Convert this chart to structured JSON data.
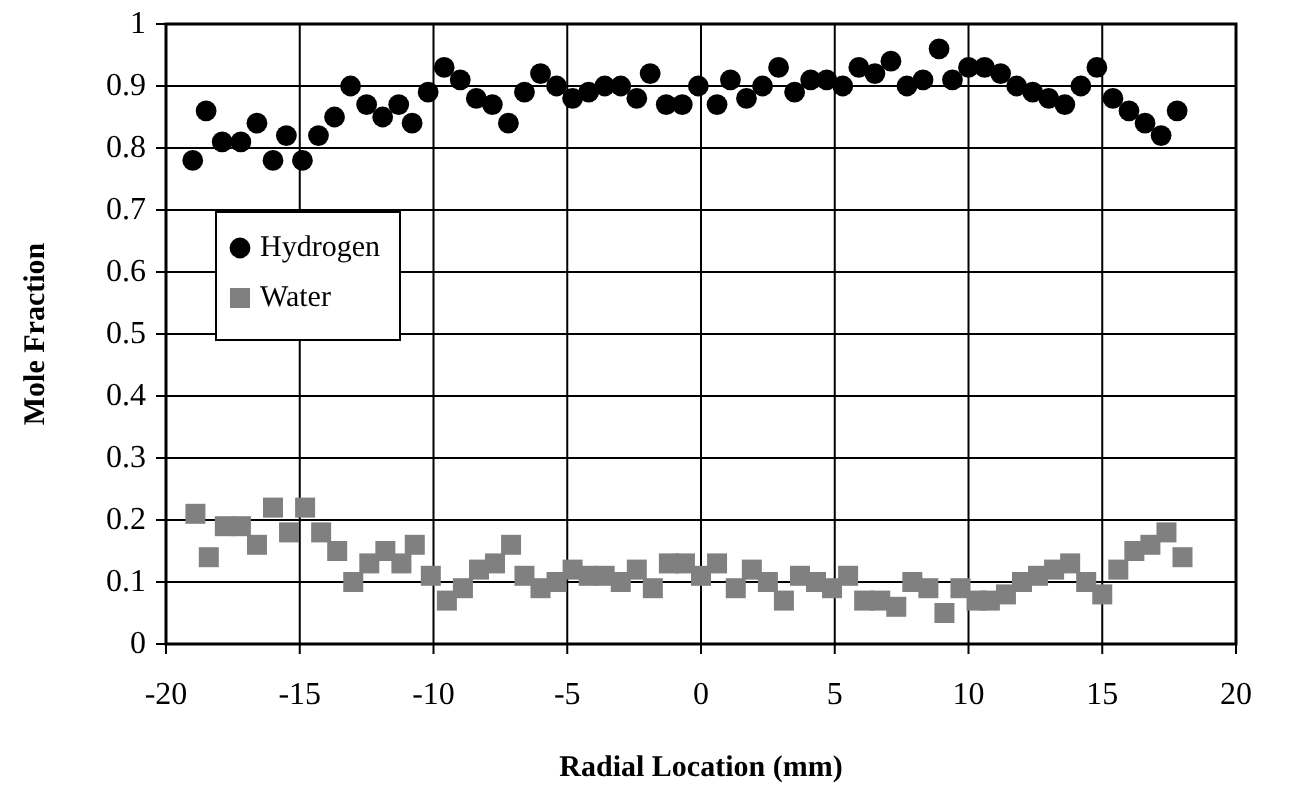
{
  "chart_data": {
    "type": "scatter",
    "xlabel": "Radial Location (mm)",
    "ylabel": "Mole Fraction",
    "xlim": [
      -20,
      20
    ],
    "xticks": [
      -20,
      -15,
      -10,
      -5,
      0,
      5,
      10,
      15,
      20
    ],
    "ylim": [
      0,
      1
    ],
    "yticks": [
      0,
      0.1,
      0.2,
      0.3,
      0.4,
      0.5,
      0.6,
      0.7,
      0.8,
      0.9,
      1
    ],
    "grid": true,
    "legend": "left",
    "series": [
      {
        "name": "Hydrogen",
        "color": "#000000",
        "marker": "circle",
        "x": [
          -19.0,
          -18.5,
          -17.9,
          -17.2,
          -16.6,
          -16.0,
          -15.5,
          -14.9,
          -14.3,
          -13.7,
          -13.1,
          -12.5,
          -11.9,
          -11.3,
          -10.8,
          -10.2,
          -9.6,
          -9.0,
          -8.4,
          -7.8,
          -7.2,
          -6.6,
          -6.0,
          -5.4,
          -4.8,
          -4.2,
          -3.6,
          -3.0,
          -2.4,
          -1.9,
          -1.3,
          -0.7,
          -0.1,
          0.6,
          1.1,
          1.7,
          2.3,
          2.9,
          3.5,
          4.1,
          4.7,
          5.3,
          5.9,
          6.5,
          7.1,
          7.7,
          8.3,
          8.9,
          9.4,
          10.0,
          10.6,
          11.2,
          11.8,
          12.4,
          13.0,
          13.6,
          14.2,
          14.8,
          15.4,
          16.0,
          16.6,
          17.2,
          17.8
        ],
        "values": [
          0.78,
          0.86,
          0.81,
          0.81,
          0.84,
          0.78,
          0.82,
          0.78,
          0.82,
          0.85,
          0.9,
          0.87,
          0.85,
          0.87,
          0.84,
          0.89,
          0.93,
          0.91,
          0.88,
          0.87,
          0.84,
          0.89,
          0.92,
          0.9,
          0.88,
          0.89,
          0.9,
          0.9,
          0.88,
          0.92,
          0.87,
          0.87,
          0.9,
          0.87,
          0.91,
          0.88,
          0.9,
          0.93,
          0.89,
          0.91,
          0.91,
          0.9,
          0.93,
          0.92,
          0.94,
          0.9,
          0.91,
          0.96,
          0.91,
          0.93,
          0.93,
          0.92,
          0.9,
          0.89,
          0.88,
          0.87,
          0.9,
          0.93,
          0.88,
          0.86,
          0.84,
          0.82,
          0.86
        ]
      },
      {
        "name": "Water",
        "color": "#808080",
        "marker": "square",
        "x": [
          -18.9,
          -18.4,
          -17.8,
          -17.2,
          -16.6,
          -16.0,
          -15.4,
          -14.8,
          -14.2,
          -13.6,
          -13.0,
          -12.4,
          -11.8,
          -11.2,
          -10.7,
          -10.1,
          -9.5,
          -8.9,
          -8.3,
          -7.7,
          -7.1,
          -6.6,
          -6.0,
          -5.4,
          -4.8,
          -4.2,
          -3.6,
          -3.0,
          -2.4,
          -1.8,
          -1.2,
          -0.6,
          0.0,
          0.6,
          1.3,
          1.9,
          2.5,
          3.1,
          3.7,
          4.3,
          4.9,
          5.5,
          6.1,
          6.7,
          7.3,
          7.9,
          8.5,
          9.1,
          9.7,
          10.3,
          10.8,
          11.4,
          12.0,
          12.6,
          13.2,
          13.8,
          14.4,
          15.0,
          15.6,
          16.2,
          16.8,
          17.4,
          18.0
        ],
        "values": [
          0.21,
          0.14,
          0.19,
          0.19,
          0.16,
          0.22,
          0.18,
          0.22,
          0.18,
          0.15,
          0.1,
          0.13,
          0.15,
          0.13,
          0.16,
          0.11,
          0.07,
          0.09,
          0.12,
          0.13,
          0.16,
          0.11,
          0.09,
          0.1,
          0.12,
          0.11,
          0.11,
          0.1,
          0.12,
          0.09,
          0.13,
          0.13,
          0.11,
          0.13,
          0.09,
          0.12,
          0.1,
          0.07,
          0.11,
          0.1,
          0.09,
          0.11,
          0.07,
          0.07,
          0.06,
          0.1,
          0.09,
          0.05,
          0.09,
          0.07,
          0.07,
          0.08,
          0.1,
          0.11,
          0.12,
          0.13,
          0.1,
          0.08,
          0.12,
          0.15,
          0.16,
          0.18,
          0.14
        ]
      }
    ]
  }
}
